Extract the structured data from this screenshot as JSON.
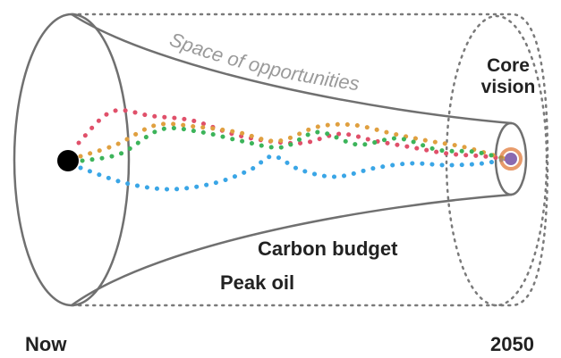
{
  "labels": {
    "opportunities": "Space of opportunities",
    "core_vision": "Core vision",
    "carbon_budget": "Carbon budget",
    "peak_oil": "Peak oil",
    "now": "Now",
    "year_2050": "2050"
  },
  "colors": {
    "funnel_stroke": "#707070",
    "opportunities_text": "#9a9a9a",
    "start_dot": "#000000",
    "core_fill": "#8a6ab0",
    "core_ring": "#e07a3a",
    "path_red": "#e0506a",
    "path_green": "#3cb45a",
    "path_blue": "#3aa6e6",
    "path_orange": "#e0a040"
  },
  "paths": [
    {
      "color_key": "path_red",
      "name": "red-path"
    },
    {
      "color_key": "path_orange",
      "name": "orange-path"
    },
    {
      "color_key": "path_green",
      "name": "green-path"
    },
    {
      "color_key": "path_blue",
      "name": "blue-path"
    }
  ]
}
